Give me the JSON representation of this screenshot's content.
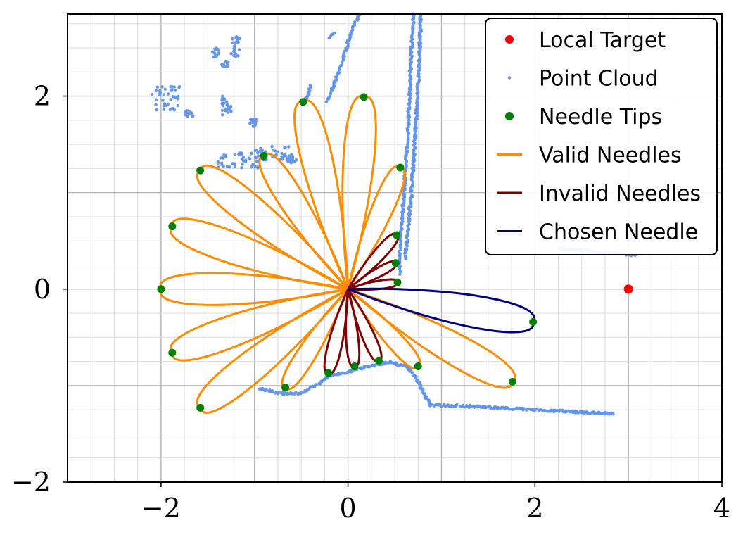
{
  "chart_data": {
    "type": "scatter",
    "xlim": [
      -3,
      4
    ],
    "ylim": [
      -2,
      2.85
    ],
    "x_ticks": [
      -2,
      0,
      2,
      4
    ],
    "y_ticks": [
      -2,
      0,
      2
    ],
    "x_tick_labels": [
      "−2",
      "0",
      "2",
      "4"
    ],
    "y_tick_labels": [
      "−2",
      "0",
      "2"
    ],
    "grid": "on (major and minor)",
    "legend_position": "top-right",
    "colors": {
      "local_target": "#ff0000",
      "point_cloud": "#6495ed",
      "needle_tips": "#008000",
      "valid_needles": "#ff8c00",
      "invalid_needles": "#800000",
      "chosen_needle": "#000080"
    },
    "legend": [
      {
        "key": "local_target",
        "label": "Local Target",
        "marker": "dot"
      },
      {
        "key": "point_cloud",
        "label": "Point Cloud",
        "marker": "small-dot"
      },
      {
        "key": "needle_tips",
        "label": "Needle Tips",
        "marker": "dot"
      },
      {
        "key": "valid_needles",
        "label": "Valid Needles",
        "marker": "line"
      },
      {
        "key": "invalid_needles",
        "label": "Invalid Needles",
        "marker": "line"
      },
      {
        "key": "chosen_needle",
        "label": "Chosen Needle",
        "marker": "line"
      }
    ],
    "local_target": [
      3.0,
      0.0
    ],
    "valid_needles_tips": [
      [
        -2.0,
        0.0
      ],
      [
        -1.88,
        0.65
      ],
      [
        -1.58,
        1.23
      ],
      [
        -0.9,
        1.38
      ],
      [
        -0.48,
        1.94
      ],
      [
        0.17,
        1.99
      ],
      [
        0.56,
        1.26
      ],
      [
        -1.88,
        -0.66
      ],
      [
        -1.58,
        -1.23
      ],
      [
        -0.67,
        -1.02
      ],
      [
        0.75,
        -0.8
      ],
      [
        1.76,
        -0.96
      ]
    ],
    "invalid_needles_tips": [
      [
        0.52,
        0.56
      ],
      [
        0.51,
        0.27
      ],
      [
        0.53,
        0.07
      ],
      [
        0.33,
        -0.74
      ],
      [
        0.07,
        -0.8
      ],
      [
        -0.21,
        -0.87
      ]
    ],
    "chosen_needle_tip": [
      1.98,
      -0.34
    ],
    "needle_tips": [
      [
        -2.0,
        0.0
      ],
      [
        -1.88,
        0.65
      ],
      [
        -1.58,
        1.23
      ],
      [
        -0.9,
        1.38
      ],
      [
        -0.48,
        1.94
      ],
      [
        0.17,
        1.99
      ],
      [
        0.56,
        1.26
      ],
      [
        0.52,
        0.56
      ],
      [
        0.51,
        0.27
      ],
      [
        0.53,
        0.07
      ],
      [
        1.98,
        -0.34
      ],
      [
        1.76,
        -0.96
      ],
      [
        0.75,
        -0.8
      ],
      [
        0.33,
        -0.74
      ],
      [
        0.07,
        -0.8
      ],
      [
        -0.21,
        -0.87
      ],
      [
        -0.67,
        -1.02
      ],
      [
        -1.58,
        -1.23
      ],
      [
        -1.88,
        -0.66
      ]
    ],
    "point_cloud": {
      "polylines": [
        [
          [
            -0.22,
            1.95
          ],
          [
            -0.1,
            2.25
          ],
          [
            0.0,
            2.55
          ],
          [
            0.07,
            2.75
          ],
          [
            0.12,
            2.85
          ]
        ],
        [
          [
            0.7,
            2.85
          ],
          [
            0.67,
            2.3
          ],
          [
            0.64,
            1.6
          ],
          [
            0.6,
            1.0
          ],
          [
            0.57,
            0.6
          ],
          [
            0.55,
            0.35
          ],
          [
            0.55,
            0.15
          ]
        ],
        [
          [
            0.78,
            2.85
          ],
          [
            0.76,
            2.3
          ],
          [
            0.72,
            1.6
          ],
          [
            0.68,
            1.0
          ],
          [
            0.64,
            0.6
          ],
          [
            0.61,
            0.3
          ]
        ],
        [
          [
            -0.95,
            -1.03
          ],
          [
            -0.72,
            -1.08
          ],
          [
            -0.52,
            -1.08
          ],
          [
            -0.38,
            -1.02
          ],
          [
            -0.2,
            -0.9
          ],
          [
            0.0,
            -0.86
          ],
          [
            0.2,
            -0.8
          ],
          [
            0.45,
            -0.76
          ],
          [
            0.62,
            -0.8
          ]
        ],
        [
          [
            0.62,
            -0.8
          ],
          [
            0.72,
            -0.9
          ],
          [
            0.8,
            -1.05
          ],
          [
            0.85,
            -1.15
          ],
          [
            0.88,
            -1.2
          ],
          [
            1.2,
            -1.21
          ],
          [
            1.8,
            -1.24
          ],
          [
            2.4,
            -1.27
          ],
          [
            2.85,
            -1.29
          ]
        ],
        [
          [
            2.25,
            0.42
          ],
          [
            2.5,
            0.4
          ],
          [
            2.8,
            0.38
          ],
          [
            3.1,
            0.35
          ]
        ],
        [
          [
            -0.4,
            2.1
          ],
          [
            -0.45,
            1.95
          ]
        ],
        [
          [
            -0.2,
            2.6
          ],
          [
            -0.14,
            2.67
          ]
        ]
      ],
      "clusters": [
        {
          "x": [
            -2.1,
            -1.8
          ],
          "y": [
            1.85,
            2.12
          ]
        },
        {
          "x": [
            -1.25,
            -1.15
          ],
          "y": [
            2.4,
            2.62
          ]
        },
        {
          "x": [
            -1.35,
            -1.28
          ],
          "y": [
            2.3,
            2.38
          ]
        },
        {
          "x": [
            -1.45,
            -1.38
          ],
          "y": [
            2.4,
            2.5
          ]
        },
        {
          "x": [
            -1.4,
            -0.95
          ],
          "y": [
            1.25,
            1.42
          ]
        },
        {
          "x": [
            -1.0,
            -0.6
          ],
          "y": [
            1.32,
            1.48
          ]
        },
        {
          "x": [
            -0.65,
            -0.55
          ],
          "y": [
            1.3,
            1.4
          ]
        },
        {
          "x": [
            -1.35,
            -1.25
          ],
          "y": [
            1.8,
            2.0
          ]
        },
        {
          "x": [
            -1.75,
            -1.65
          ],
          "y": [
            1.78,
            1.85
          ]
        },
        {
          "x": [
            -1.05,
            -0.98
          ],
          "y": [
            1.68,
            1.76
          ]
        }
      ]
    }
  }
}
